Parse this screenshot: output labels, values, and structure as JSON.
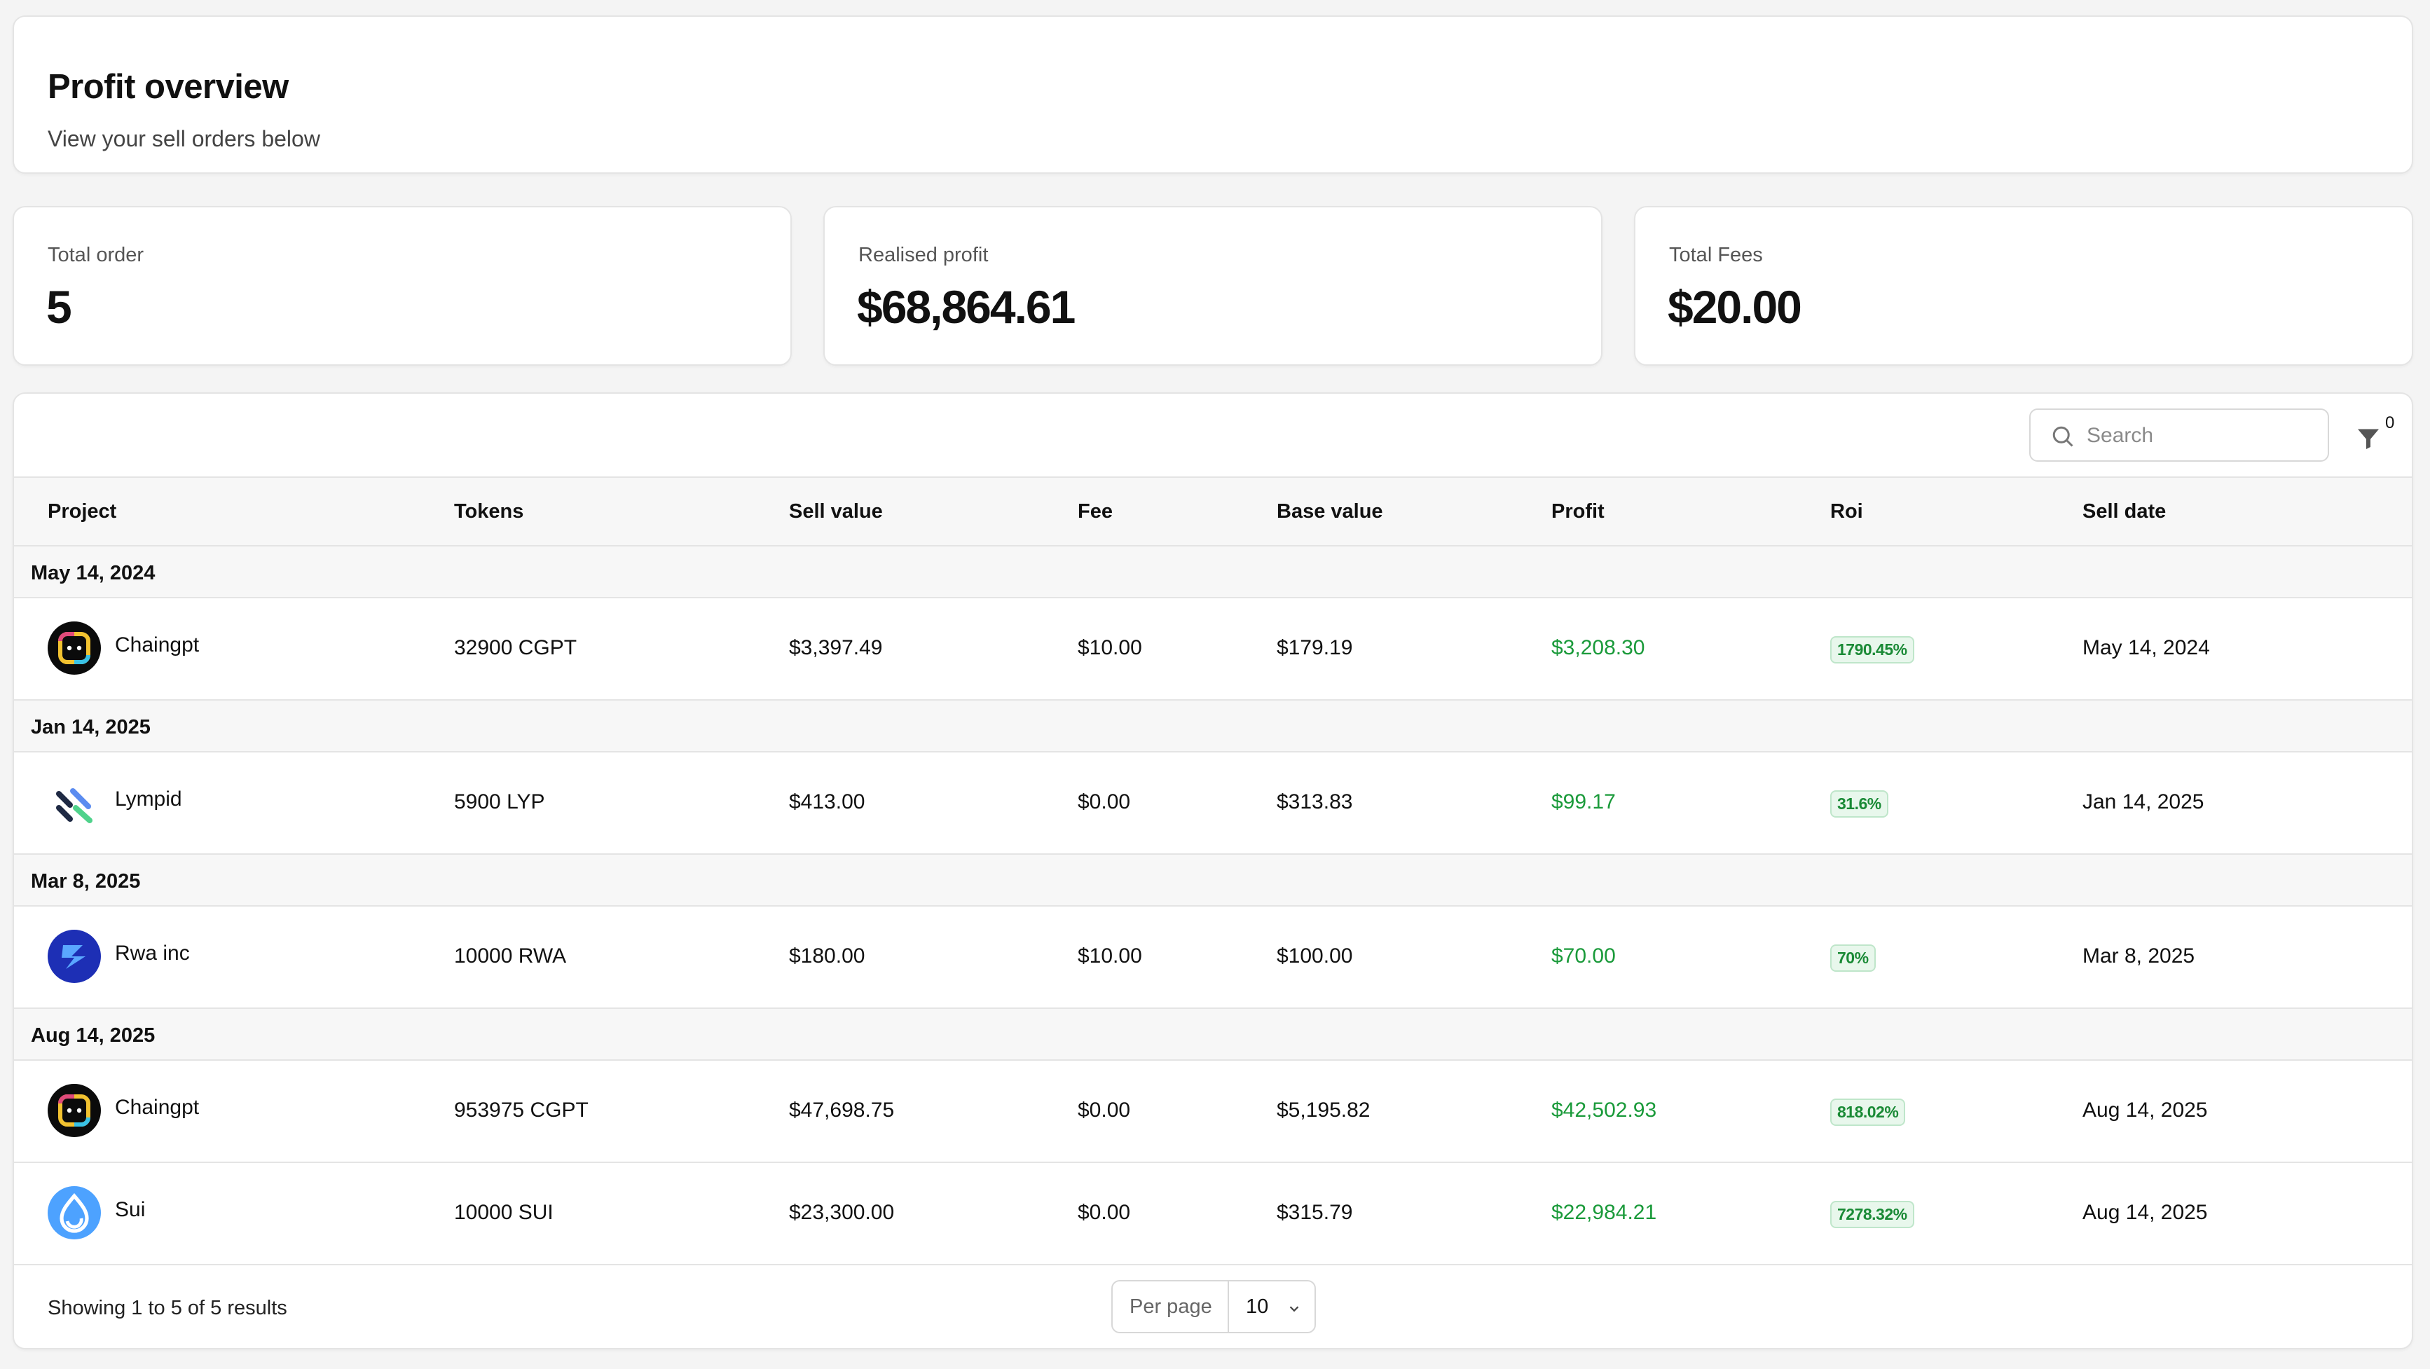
{
  "header": {
    "title": "Profit overview",
    "subtitle": "View your sell orders below"
  },
  "stats": [
    {
      "label": "Total order",
      "value": "5"
    },
    {
      "label": "Realised profit",
      "value": "$68,864.61"
    },
    {
      "label": "Total Fees",
      "value": "$20.00"
    }
  ],
  "toolbar": {
    "search_placeholder": "Search",
    "filter_count": "0"
  },
  "columns": [
    "Project",
    "Tokens",
    "Sell value",
    "Fee",
    "Base value",
    "Profit",
    "Roi",
    "Sell date"
  ],
  "groups": [
    {
      "date": "May 14, 2024"
    },
    {
      "date": "Jan 14, 2025"
    },
    {
      "date": "Mar 8, 2025"
    },
    {
      "date": "Aug 14, 2025"
    }
  ],
  "rows": [
    {
      "project": "Chaingpt",
      "logo": "chaingpt-logo-icon",
      "tokens": "32900 CGPT",
      "sell_value": "$3,397.49",
      "fee": "$10.00",
      "base_value": "$179.19",
      "profit": "$3,208.30",
      "roi": "1790.45%",
      "sell_date": "May 14, 2024"
    },
    {
      "project": "Lympid",
      "logo": "lympid-logo-icon",
      "tokens": "5900 LYP",
      "sell_value": "$413.00",
      "fee": "$0.00",
      "base_value": "$313.83",
      "profit": "$99.17",
      "roi": "31.6%",
      "sell_date": "Jan 14, 2025"
    },
    {
      "project": "Rwa inc",
      "logo": "rwa-logo-icon",
      "tokens": "10000 RWA",
      "sell_value": "$180.00",
      "fee": "$10.00",
      "base_value": "$100.00",
      "profit": "$70.00",
      "roi": "70%",
      "sell_date": "Mar 8, 2025"
    },
    {
      "project": "Chaingpt",
      "logo": "chaingpt-logo-icon",
      "tokens": "953975 CGPT",
      "sell_value": "$47,698.75",
      "fee": "$0.00",
      "base_value": "$5,195.82",
      "profit": "$42,502.93",
      "roi": "818.02%",
      "sell_date": "Aug 14, 2025"
    },
    {
      "project": "Sui",
      "logo": "sui-logo-icon",
      "tokens": "10000 SUI",
      "sell_value": "$23,300.00",
      "fee": "$0.00",
      "base_value": "$315.79",
      "profit": "$22,984.21",
      "roi": "7278.32%",
      "sell_date": "Aug 14, 2025"
    }
  ],
  "footer": {
    "showing": "Showing 1 to 5 of 5 results",
    "per_page_label": "Per page",
    "per_page_value": "10"
  },
  "colors": {
    "profit": "#1a9a3a",
    "roi_bg": "#e8f7ec",
    "background": "#f4f4f4"
  }
}
